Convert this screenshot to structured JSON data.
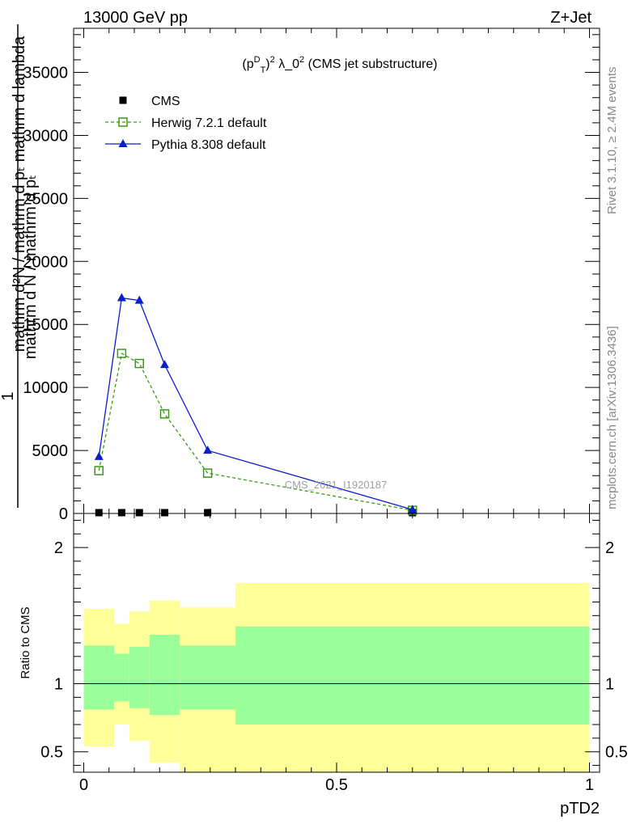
{
  "header": {
    "left": "13000 GeV pp",
    "right": "Z+Jet"
  },
  "plot_title": "(p_T^D)^2 λ_0^2 (CMS jet substructure)",
  "watermark": "CMS_2021_I1920187",
  "side_labels": {
    "rivet": "Rivet 3.1.10, ≥ 2.4M events",
    "mcplots": "mcplots.cern.ch [arXiv:1306.3436]"
  },
  "colors": {
    "cms": "#000000",
    "herwig": "#3a9a14",
    "pythia": "#0a1ecc",
    "band_outer": "#ffff99",
    "band_inner": "#99ff99"
  },
  "chart_data": [
    {
      "type": "line",
      "panel": "main",
      "ylabel": "1 / mathrm d N / mathrm d p_T mathrm d^2N / mathrm d p_T mathrm d lambda",
      "xlim": [
        -0.02,
        1.02
      ],
      "ylim": [
        0,
        38500
      ],
      "yticks": [
        0,
        5000,
        10000,
        15000,
        20000,
        25000,
        30000,
        35000
      ],
      "ytick_labels": [
        "0",
        "5000",
        "10000",
        "15000",
        "20000",
        "25000",
        "30000",
        "35000"
      ],
      "legend_position": "top-left",
      "series": [
        {
          "name": "CMS",
          "marker": "square",
          "x": [
            0.03,
            0.075,
            0.11,
            0.16,
            0.245,
            0.65
          ],
          "y": [
            0,
            0,
            0,
            0,
            0,
            0
          ]
        },
        {
          "name": "Herwig 7.2.1 default",
          "marker": "open-square",
          "line": "dashed",
          "x": [
            0.03,
            0.075,
            0.11,
            0.16,
            0.245,
            0.65
          ],
          "y": [
            3400,
            12700,
            11900,
            7900,
            3200,
            250
          ]
        },
        {
          "name": "Pythia 8.308 default",
          "marker": "triangle",
          "line": "solid",
          "x": [
            0.03,
            0.075,
            0.11,
            0.16,
            0.245,
            0.65
          ],
          "y": [
            4500,
            17100,
            16900,
            11800,
            5000,
            300
          ]
        }
      ]
    },
    {
      "type": "area",
      "panel": "ratio",
      "ylabel": "Ratio to CMS",
      "xlabel": "pTD2",
      "xlim": [
        -0.02,
        1.02
      ],
      "ylim": [
        0.35,
        2.25
      ],
      "xticks": [
        0,
        0.5,
        1
      ],
      "xtick_labels": [
        "0",
        "0.5",
        "1"
      ],
      "yticks": [
        0.5,
        1,
        2
      ],
      "ytick_labels": [
        "0.5",
        "1",
        "2"
      ],
      "reference": 1,
      "bins": [
        {
          "x0": 0.0,
          "x1": 0.06,
          "outer": [
            0.54,
            1.55
          ],
          "inner": [
            0.81,
            1.28
          ]
        },
        {
          "x0": 0.06,
          "x1": 0.09,
          "outer": [
            0.7,
            1.44
          ],
          "inner": [
            0.87,
            1.22
          ]
        },
        {
          "x0": 0.09,
          "x1": 0.13,
          "outer": [
            0.58,
            1.53
          ],
          "inner": [
            0.82,
            1.27
          ]
        },
        {
          "x0": 0.13,
          "x1": 0.19,
          "outer": [
            0.42,
            1.61
          ],
          "inner": [
            0.77,
            1.36
          ]
        },
        {
          "x0": 0.19,
          "x1": 0.3,
          "outer": [
            0.35,
            1.56
          ],
          "inner": [
            0.81,
            1.28
          ]
        },
        {
          "x0": 0.3,
          "x1": 1.0,
          "outer": [
            0.35,
            1.74
          ],
          "inner": [
            0.7,
            1.42
          ]
        }
      ]
    }
  ]
}
